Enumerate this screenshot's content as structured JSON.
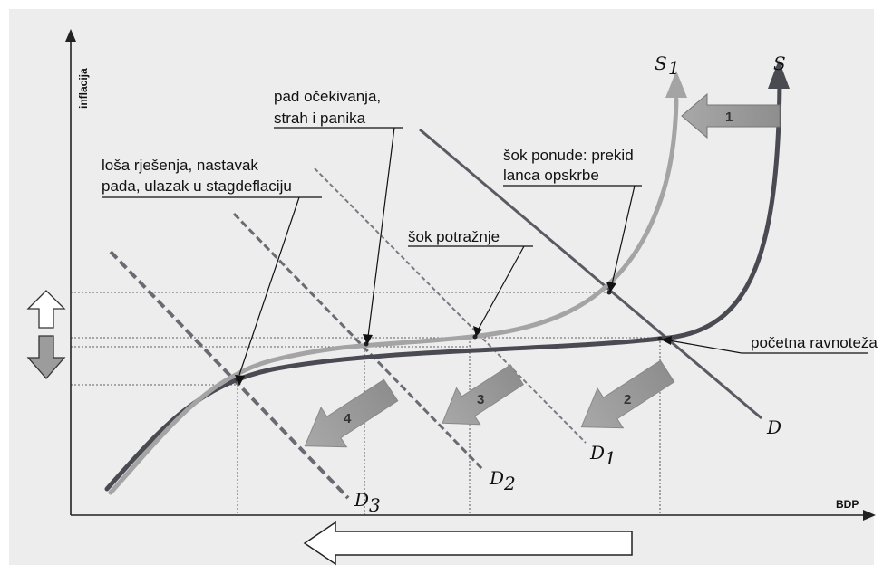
{
  "axes": {
    "y_label": "inflacija",
    "x_label": "BDP"
  },
  "curves": {
    "supply": "S",
    "supply_shifted": "S",
    "supply_shifted_sub": "1",
    "demand": "D",
    "demand_1": "D",
    "demand_1_sub": "1",
    "demand_2": "D",
    "demand_2_sub": "2",
    "demand_3": "D",
    "demand_3_sub": "3"
  },
  "annotations": {
    "expectations_line1": "pad očekivanja,",
    "expectations_line2": "strah i panika",
    "bad_solutions_line1": "loša rješenja, nastavak",
    "bad_solutions_line2": "pada, ulazak u stagdeflaciju",
    "supply_shock_line1": "šok ponude: prekid",
    "supply_shock_line2": "lanca opskrbe",
    "demand_shock": "šok potražnje",
    "initial_equilibrium": "početna ravnoteža"
  },
  "step_arrows": [
    "1",
    "2",
    "3",
    "4"
  ],
  "colors": {
    "background_panel": "#ededed",
    "supply_dark": "#4a4a52",
    "supply_shifted_light": "#a4a4a4",
    "demand": "#5a5a62",
    "step_arrow": "#9a9a9a",
    "outline_arrow": "#ffffff"
  }
}
